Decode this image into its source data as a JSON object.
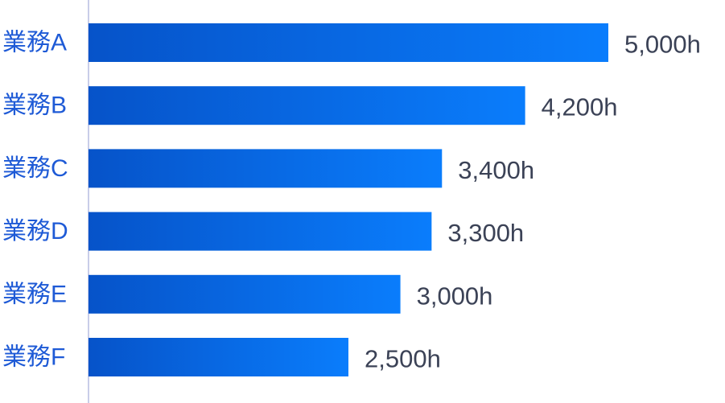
{
  "chart_data": {
    "type": "bar",
    "orientation": "horizontal",
    "categories": [
      "業務A",
      "業務B",
      "業務C",
      "業務D",
      "業務E",
      "業務F"
    ],
    "values": [
      5000,
      4200,
      3400,
      3300,
      3000,
      2500
    ],
    "value_labels": [
      "5,000h",
      "4,200h",
      "3,400h",
      "3,300h",
      "3,000h",
      "2,500h"
    ],
    "unit": "h",
    "title": "",
    "xlabel": "",
    "ylabel": "",
    "xlim": [
      0,
      5000
    ],
    "grid": false,
    "legend": "none",
    "colors": {
      "bar_start": "#0653c9",
      "bar_end": "#0a7dfc",
      "category_text": "#1e5ad6",
      "value_text": "#3b4256",
      "axis": "#c9cde8"
    }
  }
}
